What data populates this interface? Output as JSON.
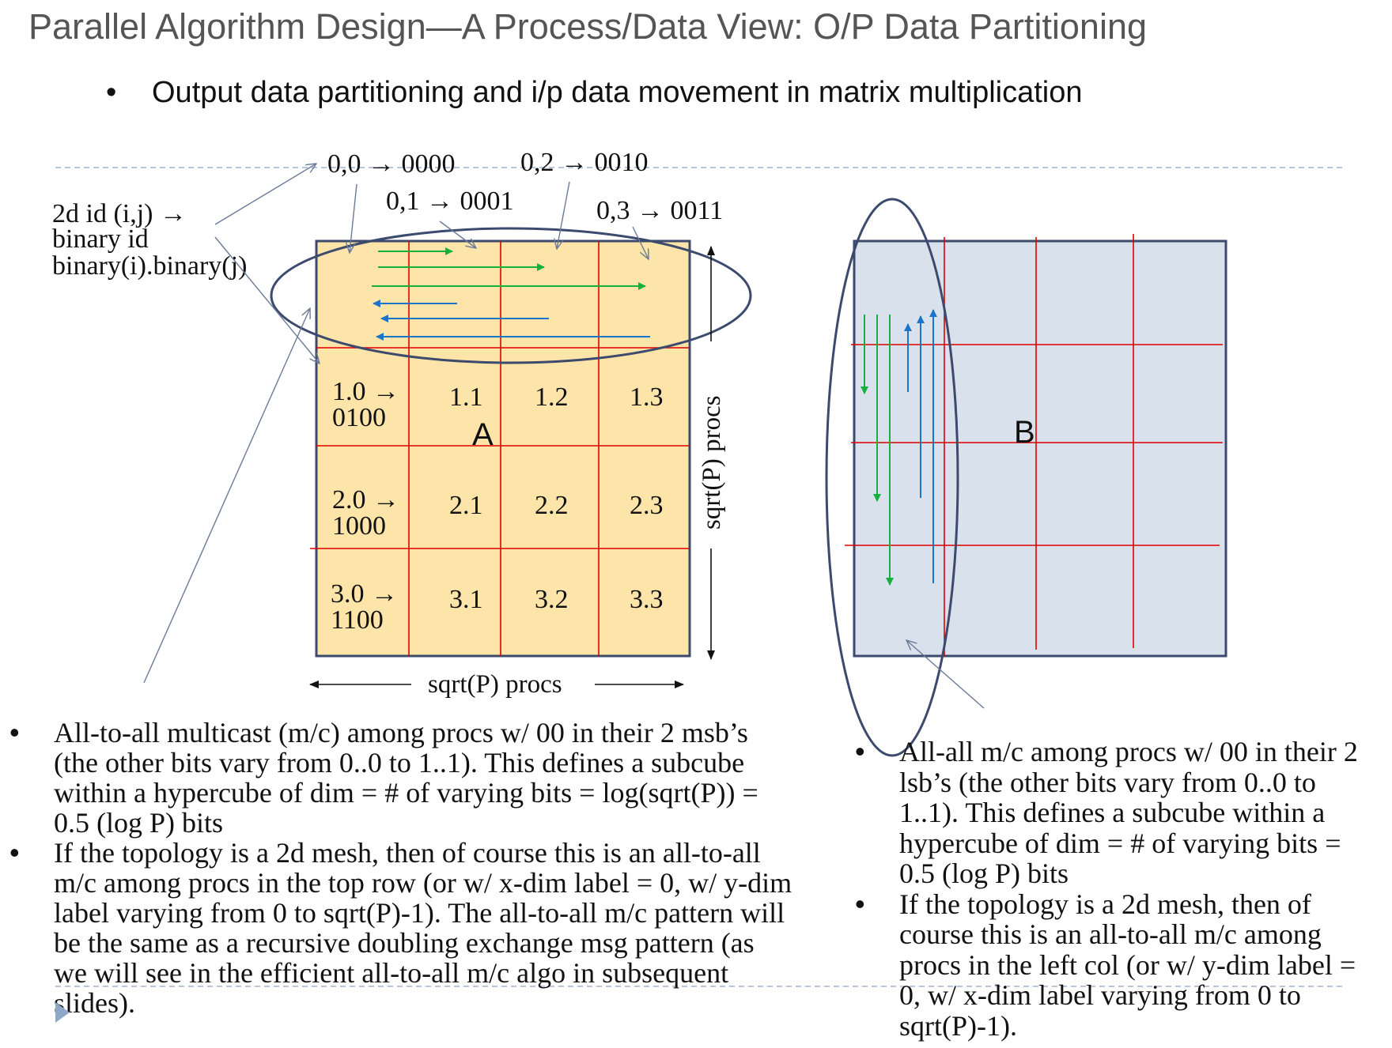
{
  "slide": {
    "title": "Parallel Algorithm Design—A Process/Data View: O/P Data Partitioning",
    "bullet_char": "•",
    "subtitle": "Output data partitioning and i/p data movement in matrix multiplication"
  },
  "colors": {
    "title": "#555555",
    "matrix_a_fill": "#fde4a8",
    "matrix_b_fill": "#d9e2ec",
    "grid_lines": "#e00000",
    "border": "#3c4a6e",
    "green_arrows": "#14b13b",
    "blue_arrows": "#1a74c8",
    "dashed_guides": "#9fb3cf"
  },
  "annotations": {
    "id_mapping": [
      "2d id (i,j) →",
      "binary id",
      "binary(i).binary(j)"
    ],
    "top_labels": [
      "0,0 → 0000",
      "0,1 → 0001",
      "0,2 → 0010",
      "0,3 → 0011"
    ],
    "axis_label": "sqrt(P) procs"
  },
  "matrix_a": {
    "label": "A",
    "cells": [
      [
        "",
        "",
        "",
        ""
      ],
      [
        "1.0 →\n0100",
        "1.1",
        "1.2",
        "1.3"
      ],
      [
        "2.0 →\n1000",
        "2.1",
        "2.2",
        "2.3"
      ],
      [
        "3.0 →\n1100",
        "3.1",
        "3.2",
        "3.3"
      ]
    ]
  },
  "matrix_b": {
    "label": "B"
  },
  "left_bullets": [
    "All-to-all multicast (m/c) among procs w/ 00 in their 2 msb’s (the other bits vary from 0..0 to 1..1). This defines a subcube within a hypercube of dim = # of varying bits = log(sqrt(P)) = 0.5 (log P) bits",
    "If the topology is a 2d mesh, then of course this is an all-to-all m/c among procs in the top row (or w/ x-dim label = 0, w/ y-dim label varying from 0 to sqrt(P)-1). The all-to-all m/c pattern will be the same as a recursive doubling exchange msg pattern (as we will see in the efficient all-to-all m/c algo in subsequent slides)."
  ],
  "right_bullets": [
    "All-all m/c among procs w/ 00 in their 2 lsb’s (the other bits vary from 0..0 to 1..1). This defines a subcube within a hypercube of dim = # of varying bits = 0.5 (log P) bits",
    "If the topology is a 2d mesh, then of course this is an all-to-all m/c among procs in the left col (or w/ y-dim label = 0, w/ x-dim label varying from 0 to sqrt(P)-1)."
  ]
}
